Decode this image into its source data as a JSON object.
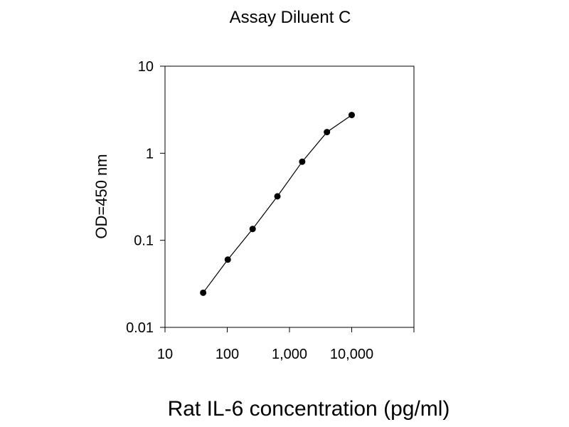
{
  "chart_data": {
    "type": "line",
    "title": "Assay Diluent C",
    "xlabel": "Rat IL-6  concentration (pg/ml)",
    "ylabel": "OD=450 nm",
    "x_scale": "log",
    "y_scale": "log",
    "xlim": [
      10,
      100000
    ],
    "ylim": [
      0.01,
      10
    ],
    "x_ticks": [
      {
        "value": 10,
        "label": "10"
      },
      {
        "value": 100,
        "label": "100"
      },
      {
        "value": 1000,
        "label": "1,000"
      },
      {
        "value": 10000,
        "label": "10,000"
      }
    ],
    "y_ticks": [
      {
        "value": 0.01,
        "label": "0.01"
      },
      {
        "value": 0.1,
        "label": "0.1"
      },
      {
        "value": 1,
        "label": "1"
      },
      {
        "value": 10,
        "label": "10"
      }
    ],
    "grid": false,
    "series": [
      {
        "color": "#000000",
        "x": [
          41,
          102,
          256,
          640,
          1600,
          4000,
          10000
        ],
        "y": [
          0.025,
          0.06,
          0.135,
          0.32,
          0.8,
          1.75,
          2.75
        ]
      }
    ]
  }
}
